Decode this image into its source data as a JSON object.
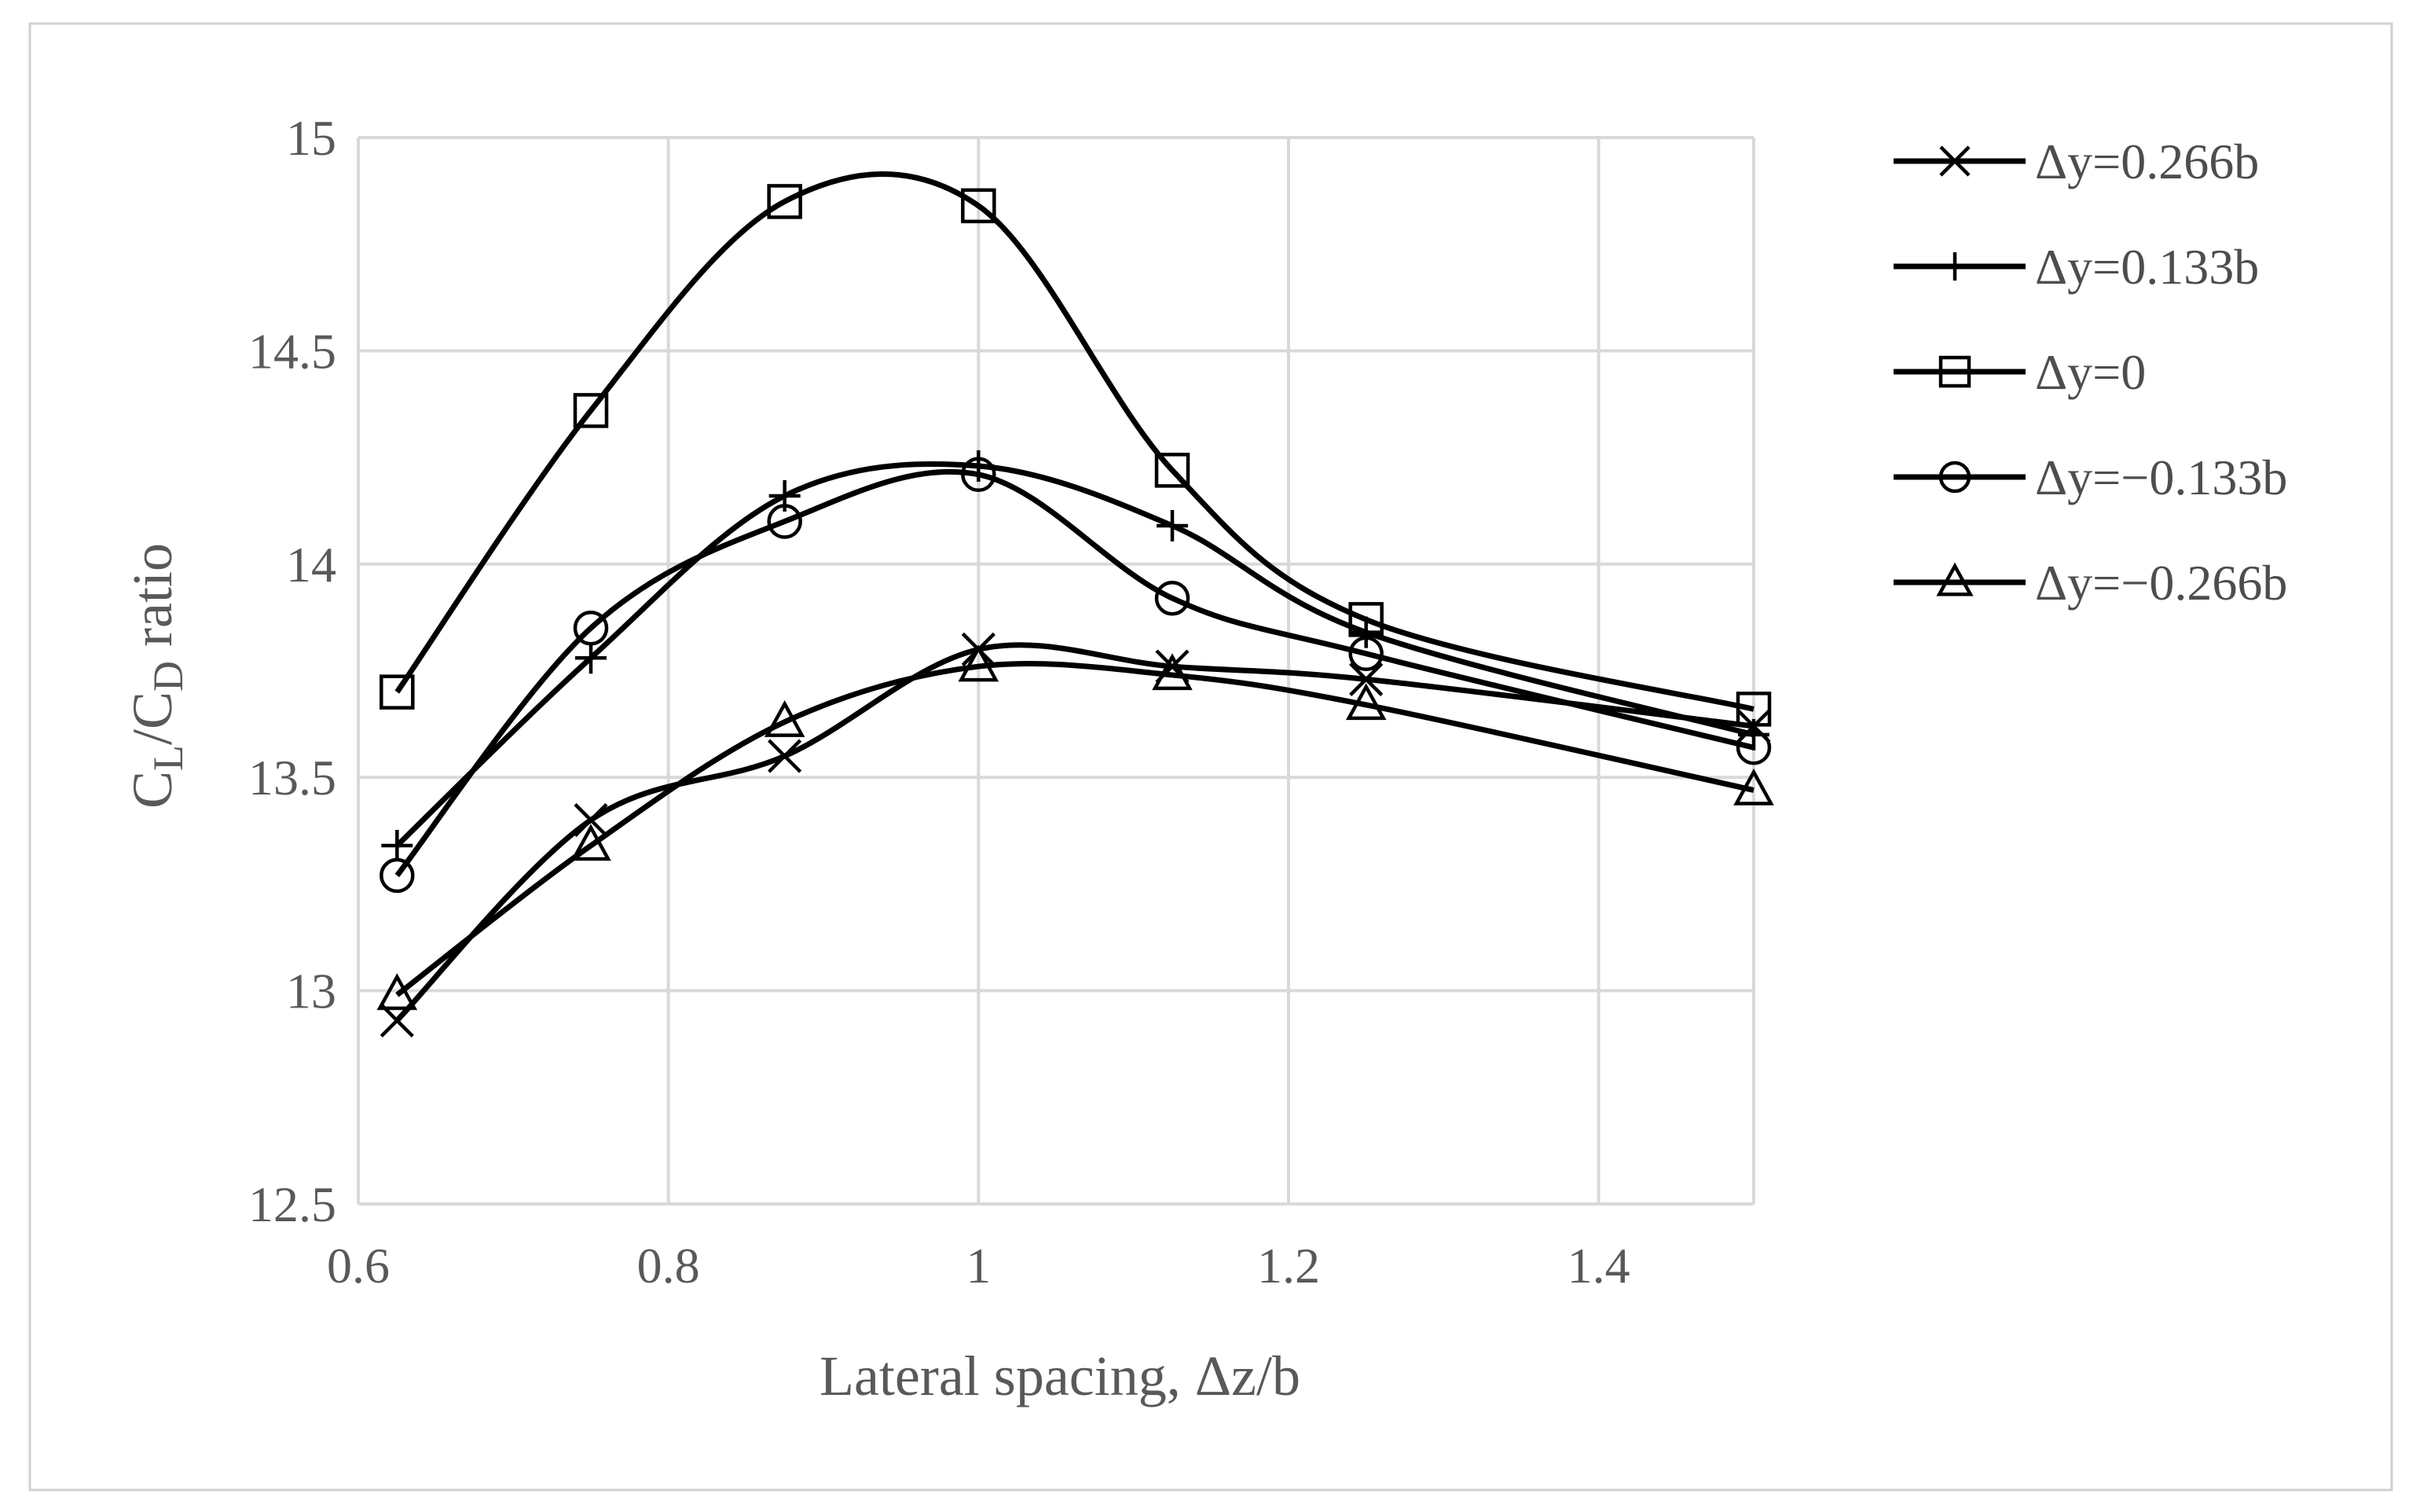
{
  "chart_data": {
    "type": "line",
    "title": "",
    "xlabel": "Lateral spacing, Δz/b",
    "ylabel": {
      "parts": [
        {
          "text": "C",
          "sub": false
        },
        {
          "text": "L",
          "sub": true
        },
        {
          "text": "/C",
          "sub": false
        },
        {
          "text": "D",
          "sub": true
        },
        {
          "text": " ratio",
          "sub": false
        }
      ]
    },
    "xlim": [
      0.6,
      1.5
    ],
    "ylim": [
      12.5,
      15
    ],
    "xticks": [
      0.6,
      0.8,
      1,
      1.2,
      1.4
    ],
    "xtick_labels": [
      "0.6",
      "0.8",
      "1",
      "1.2",
      "1.4"
    ],
    "yticks": [
      12.5,
      13,
      13.5,
      14,
      14.5,
      15
    ],
    "ytick_labels": [
      "12.5",
      "13",
      "13.5",
      "14",
      "14.5",
      "15"
    ],
    "grid": true,
    "smooth": true,
    "legend": "right",
    "x": [
      0.625,
      0.75,
      0.875,
      1.0,
      1.125,
      1.25,
      1.5
    ],
    "series": [
      {
        "name": "Δy=0.266b",
        "marker": "x",
        "color": "#000000",
        "values": [
          12.93,
          13.4,
          13.55,
          13.8,
          13.76,
          13.73,
          13.62
        ]
      },
      {
        "name": "Δy=0.133b",
        "marker": "plus",
        "color": "#000000",
        "values": [
          13.34,
          13.78,
          14.16,
          14.23,
          14.09,
          13.84,
          13.6
        ]
      },
      {
        "name": "Δy=0",
        "marker": "square",
        "color": "#000000",
        "values": [
          13.7,
          14.36,
          14.85,
          14.84,
          14.22,
          13.87,
          13.66
        ]
      },
      {
        "name": "Δy=−0.133b",
        "marker": "circle",
        "color": "#000000",
        "values": [
          13.27,
          13.85,
          14.1,
          14.21,
          13.92,
          13.79,
          13.57
        ]
      },
      {
        "name": "Δy=−0.266b",
        "marker": "triangle",
        "color": "#000000",
        "values": [
          12.99,
          13.34,
          13.63,
          13.76,
          13.74,
          13.67,
          13.47
        ]
      }
    ]
  }
}
